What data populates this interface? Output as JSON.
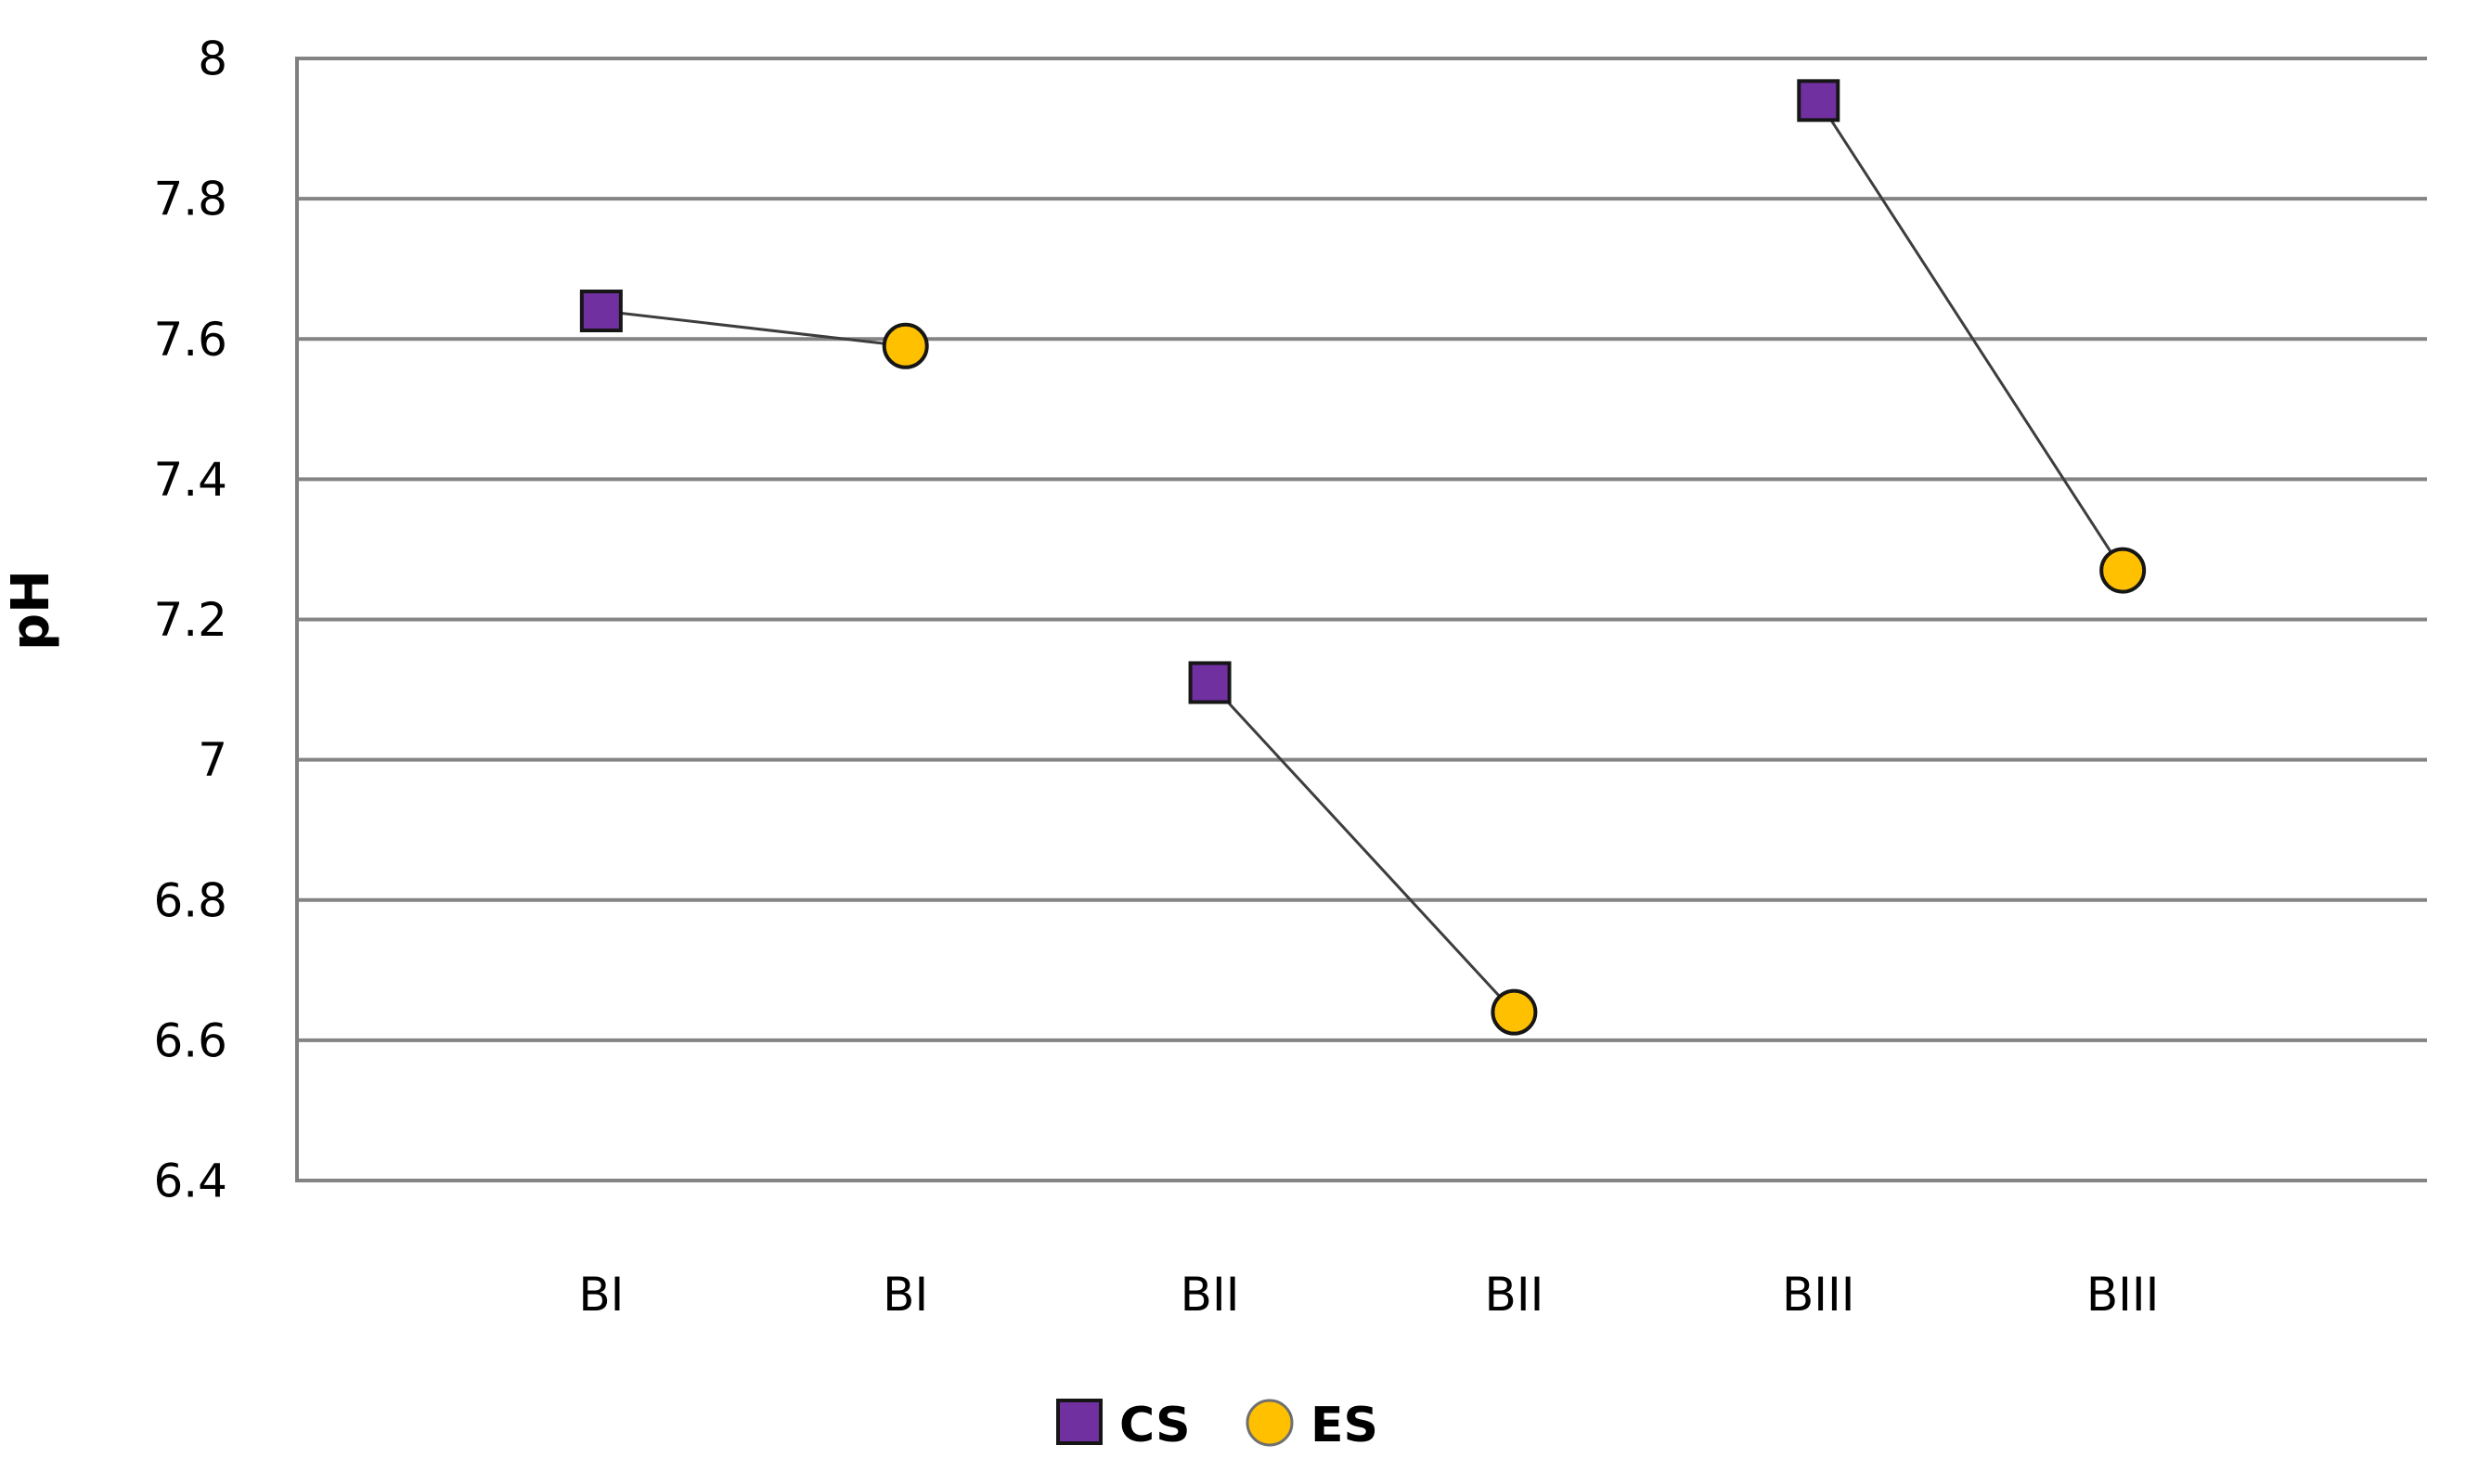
{
  "chart": {
    "ylabel": "pH",
    "legend": [
      {
        "label": "CS",
        "marker": "square",
        "color": "#7030A0"
      },
      {
        "label": "ES",
        "marker": "circle",
        "color": "#FFC000"
      }
    ]
  },
  "chart_data": {
    "type": "scatter",
    "title": "",
    "xlabel": "",
    "ylabel": "pH",
    "categories": [
      "BI",
      "BI",
      "BII",
      "BII",
      "BIII",
      "BIII"
    ],
    "x_positions": [
      1,
      2,
      3,
      4,
      5,
      6
    ],
    "x_axis_range": [
      0,
      7
    ],
    "ylim": [
      6.4,
      8.0
    ],
    "ytick_step": 0.2,
    "y_tick_labels": [
      "8",
      "7.8",
      "7.6",
      "7.4",
      "7.2",
      "7",
      "6.8",
      "6.6",
      "6.4"
    ],
    "grid": "horizontal",
    "legend_position": "bottom-center",
    "series": [
      {
        "name": "CS",
        "marker": "square",
        "color": "#7030A0",
        "x": [
          1,
          3,
          5
        ],
        "values": [
          7.64,
          7.11,
          7.94
        ]
      },
      {
        "name": "ES",
        "marker": "circle",
        "color": "#FFC000",
        "x": [
          2,
          4,
          6
        ],
        "values": [
          7.59,
          6.64,
          7.27
        ]
      }
    ],
    "connected_pairs": [
      {
        "category": "BI",
        "cs": 7.64,
        "es": 7.59
      },
      {
        "category": "BII",
        "cs": 7.11,
        "es": 6.64
      },
      {
        "category": "BIII",
        "cs": 7.94,
        "es": 7.27
      }
    ],
    "colors": {
      "gridline": "#848484",
      "axis": "#808080",
      "connector": "#3d3d3d",
      "marker_border": "#161616",
      "text": "#000000",
      "background": "#ffffff"
    }
  }
}
